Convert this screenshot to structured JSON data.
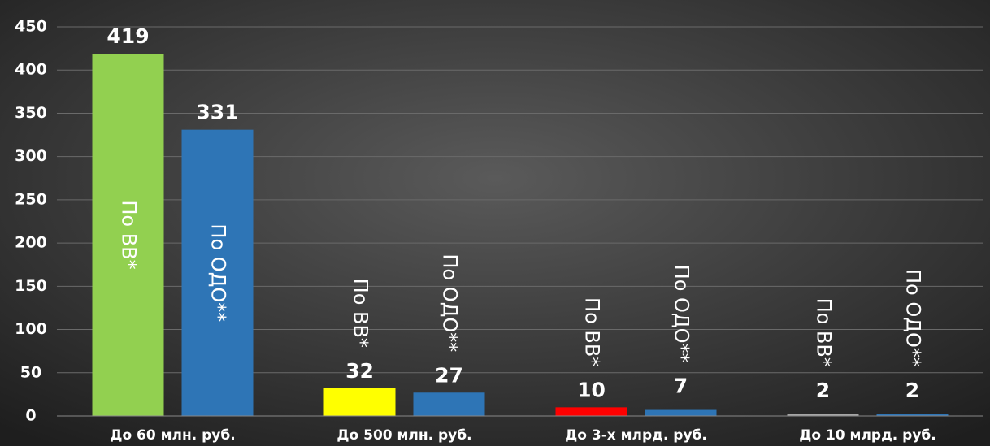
{
  "chart_data": {
    "type": "bar",
    "categories": [
      "До 60 млн. руб.",
      "До 500 млн. руб.",
      "До 3-х млрд. руб.",
      "До 10 млрд. руб."
    ],
    "series": [
      {
        "name": "По ВВ*",
        "colors": [
          "#92d050",
          "#ffff00",
          "#ff0000",
          "#a6a6a6"
        ],
        "values": [
          419,
          32,
          10,
          2
        ]
      },
      {
        "name": "По ОДО**",
        "color": "#2e75b6",
        "values": [
          331,
          27,
          7,
          2
        ]
      }
    ],
    "ylim": [
      0,
      450
    ],
    "yticks": [
      0,
      50,
      100,
      150,
      200,
      250,
      300,
      350,
      400,
      450
    ],
    "grid": true
  }
}
